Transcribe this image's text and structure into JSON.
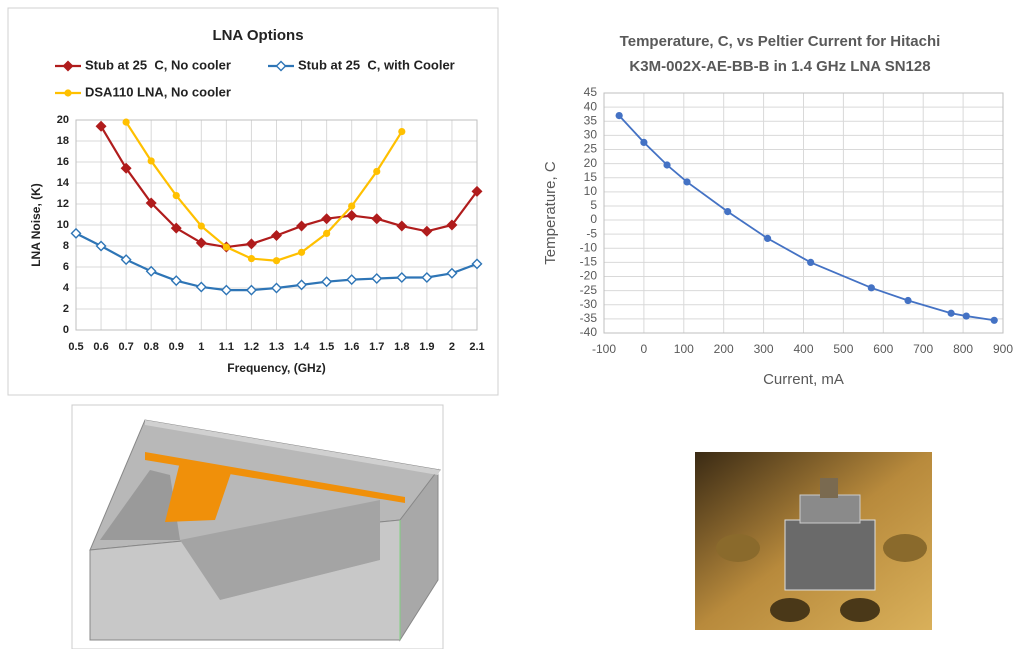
{
  "chart_data": [
    {
      "type": "line",
      "title": "LNA Options",
      "x_label": "Frequency, (GHz)",
      "y_label": "LNA Noise, (K)",
      "x": [
        0.5,
        0.6,
        0.7,
        0.8,
        0.9,
        1,
        1.1,
        1.2,
        1.3,
        1.4,
        1.5,
        1.6,
        1.7,
        1.8,
        1.9,
        2,
        2.1
      ],
      "series": [
        {
          "name": "Stub at 25  C, No cooler",
          "color": "#b01c1c",
          "marker": "diamond",
          "values": [
            null,
            19.4,
            15.4,
            12.1,
            9.7,
            8.3,
            7.9,
            8.2,
            9.0,
            9.9,
            10.6,
            10.9,
            10.6,
            9.9,
            9.4,
            10.0,
            13.2
          ]
        },
        {
          "name": "Stub at 25  C, with Cooler",
          "color": "#2e75b6",
          "marker": "diamond-open",
          "values": [
            9.2,
            8.0,
            6.7,
            5.6,
            4.7,
            4.1,
            3.8,
            3.8,
            4.0,
            4.3,
            4.6,
            4.8,
            4.9,
            5.0,
            5.0,
            5.4,
            6.3
          ]
        },
        {
          "name": "DSA110 LNA, No cooler",
          "color": "#ffc000",
          "marker": "circle",
          "values": [
            null,
            null,
            19.8,
            16.1,
            12.8,
            9.9,
            7.9,
            6.8,
            6.6,
            7.4,
            9.2,
            11.8,
            15.1,
            18.9,
            null,
            null,
            null
          ]
        }
      ],
      "xlim": [
        0.5,
        2.1
      ],
      "xticks": [
        0.5,
        0.6,
        0.7,
        0.8,
        0.9,
        1,
        1.1,
        1.2,
        1.3,
        1.4,
        1.5,
        1.6,
        1.7,
        1.8,
        1.9,
        2,
        2.1
      ],
      "ylim": [
        0,
        20
      ],
      "yticks": [
        0,
        2,
        4,
        6,
        8,
        10,
        12,
        14,
        16,
        18,
        20
      ],
      "grid": true
    },
    {
      "type": "line",
      "title_lines": [
        "Temperature, C, vs Peltier Current for Hitachi",
        "K3M-002X-AE-BB-B in 1.4 GHz  LNA  SN128"
      ],
      "x_label": "Current, mA",
      "y_label": "Temperature, C",
      "x": [
        -62,
        0,
        58,
        108,
        210,
        310,
        418,
        570,
        662,
        770,
        808,
        878
      ],
      "series": [
        {
          "color": "#4472c4",
          "marker": "circle",
          "values": [
            37,
            27.5,
            19.5,
            13.5,
            3,
            -6.5,
            -15,
            -24,
            -28.5,
            -33,
            -34,
            -35.5
          ]
        }
      ],
      "xlim": [
        -100,
        900
      ],
      "xticks": [
        -100,
        0,
        100,
        200,
        300,
        400,
        500,
        600,
        700,
        800,
        900
      ],
      "ylim": [
        -40,
        45
      ],
      "yticks": [
        -40,
        -35,
        -30,
        -25,
        -20,
        -15,
        -10,
        -5,
        0,
        5,
        10,
        15,
        20,
        25,
        30,
        35,
        40,
        45
      ],
      "grid": true
    }
  ]
}
